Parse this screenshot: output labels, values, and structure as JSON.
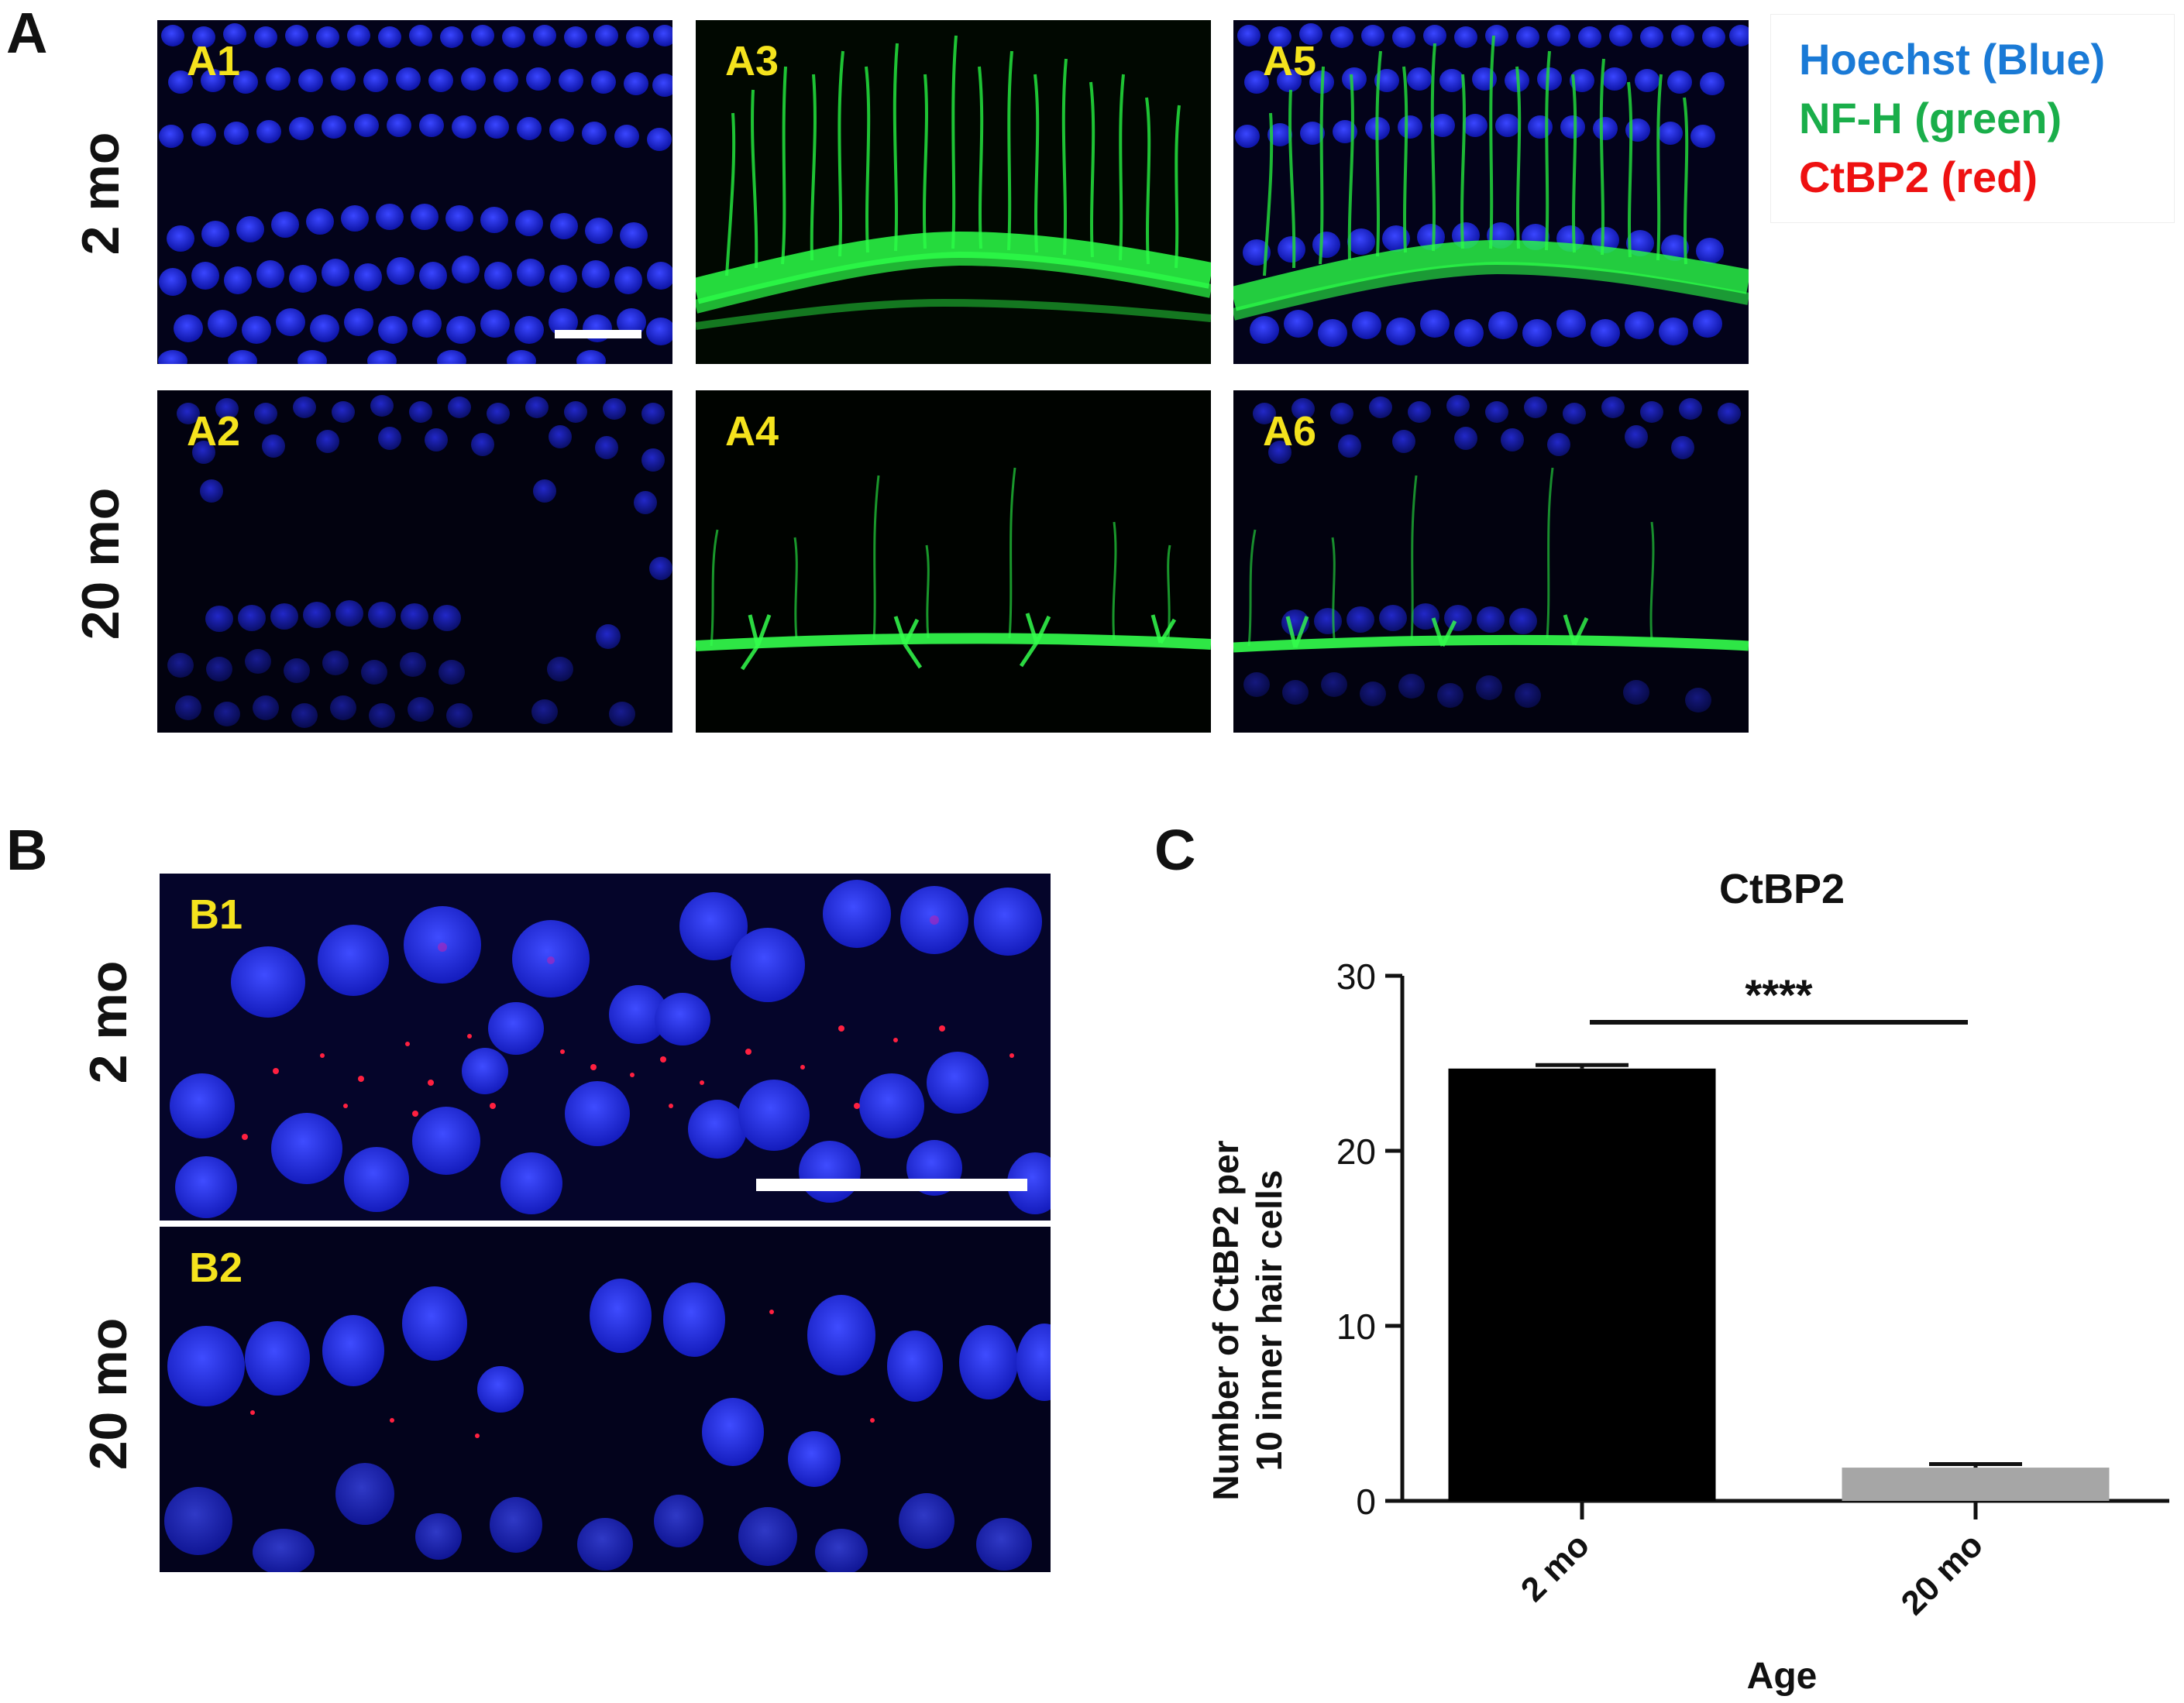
{
  "panel_letters": {
    "a": "A",
    "b": "B",
    "c": "C"
  },
  "panel_a": {
    "row_labels": [
      "2 mo",
      "20 mo"
    ],
    "images": [
      {
        "label": "A1",
        "channels": "blue"
      },
      {
        "label": "A3",
        "channels": "green"
      },
      {
        "label": "A5",
        "channels": "merge"
      },
      {
        "label": "A2",
        "channels": "blue"
      },
      {
        "label": "A4",
        "channels": "green"
      },
      {
        "label": "A6",
        "channels": "merge"
      }
    ],
    "legend": [
      {
        "text": "Hoechst (Blue)",
        "color": "#1a7ad6"
      },
      {
        "text": "NF-H (green)",
        "color": "#1aae4a"
      },
      {
        "text": "CtBP2 (red)",
        "color": "#ee1111"
      }
    ]
  },
  "panel_b": {
    "row_labels": [
      "2 mo",
      "20 mo"
    ],
    "images": [
      {
        "label": "B1"
      },
      {
        "label": "B2"
      }
    ]
  },
  "chart_data": {
    "type": "bar",
    "title": "CtBP2",
    "categories": [
      "2 mo",
      "20 mo"
    ],
    "values": [
      24.7,
      1.9
    ],
    "errors": [
      0.2,
      0.2
    ],
    "colors": [
      "#000000",
      "#a6a6a6"
    ],
    "ylabel_lines": [
      "Number of CtBP2 per",
      "10 inner hair cells"
    ],
    "xlabel": "Age",
    "ylim": [
      0,
      30
    ],
    "yticks": [
      0,
      10,
      20,
      30
    ],
    "significance": "****",
    "grid": false
  }
}
